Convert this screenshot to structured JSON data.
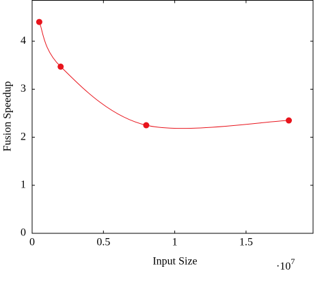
{
  "chart_data": {
    "type": "line",
    "xlabel": "Input Size",
    "ylabel": "Fusion Speedup",
    "x_multiplier": {
      "base": "·10",
      "exponent": "7"
    },
    "x": [
      0.05,
      0.2,
      0.8,
      1.8
    ],
    "series": [
      {
        "color": "#e8141c",
        "values": [
          4.4,
          3.47,
          2.25,
          2.35
        ]
      }
    ],
    "xlim": [
      0,
      1.97
    ],
    "ylim": [
      0,
      4.85
    ],
    "xticks": [
      0,
      0.5,
      1,
      1.5
    ],
    "yticks": [
      0,
      1,
      2,
      3,
      4
    ],
    "smooth": true,
    "markers": true
  }
}
